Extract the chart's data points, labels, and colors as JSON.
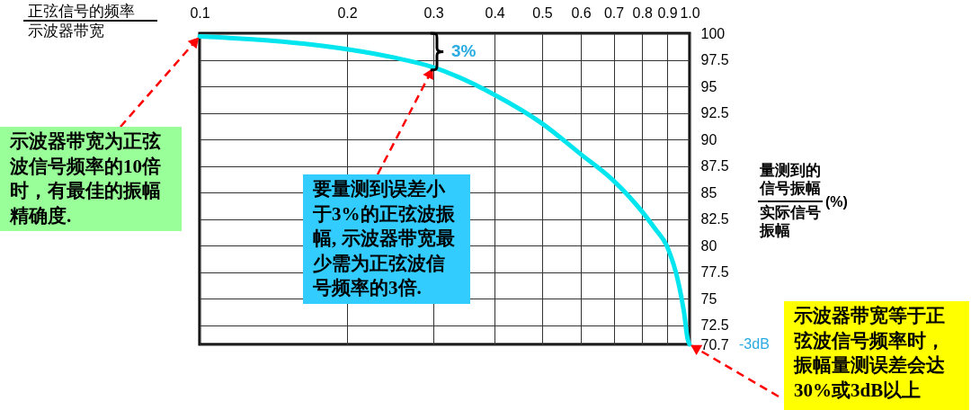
{
  "chart_data": {
    "type": "line",
    "xlabel": "正弦信号的频率示波器带宽",
    "ylabel": "量测到的信号振幅实际信号振幅(%)",
    "x": [
      0.1,
      0.14,
      0.2,
      0.25,
      0.3,
      0.4,
      0.5,
      0.6,
      0.7,
      0.8,
      0.85,
      0.9,
      0.95,
      0.975,
      0.99,
      1
    ],
    "series": [
      {
        "color": "#00e5ee",
        "values": [
          99.7,
          99.3,
          98.5,
          97.7,
          96.8,
          94.2,
          91.5,
          88.6,
          86.1,
          83.2,
          81.6,
          79.9,
          76.4,
          73.6,
          71.3,
          70.7
        ]
      }
    ],
    "xlim": [
      0.1,
      1
    ],
    "ylim": [
      70.7,
      100
    ],
    "xticks": [
      0.1,
      0.2,
      0.3,
      0.4,
      0.5,
      0.6,
      0.7,
      0.8,
      0.9,
      {
        "value": 1,
        "label": "1.0"
      }
    ],
    "yticks": [
      100,
      97.5,
      95,
      92.5,
      90,
      87.5,
      85,
      82.5,
      80,
      77.5,
      75,
      72.5,
      70.7
    ],
    "log": "x",
    "grid": true,
    "annotations": [
      {
        "text": "示波器带宽为正弦波信号频率的10倍时，有最佳的振幅精确度.",
        "x": 0.1,
        "y": 99.7
      },
      {
        "text": "要量测到误差小于3%的正弦波振幅, 示波器带宽最少需为正弦波信号频率的3倍.",
        "x": 0.3,
        "y": 96.8
      },
      {
        "text": "示波器带宽等于正弦波信号频率时，振幅量测误差会达30%或3dB以上",
        "x": 1,
        "y": 70.7
      },
      "3%",
      "-3dB"
    ]
  }
}
